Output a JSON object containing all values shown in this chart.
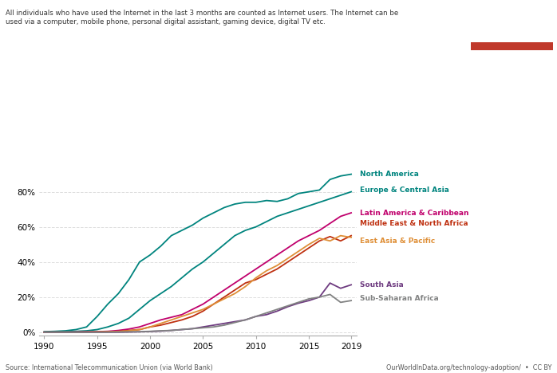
{
  "subtitle": "All individuals who have used the Internet in the last 3 months are counted as Internet users. The Internet can be\nused via a computer, mobile phone, personal digital assistant, gaming device, digital TV etc.",
  "source": "Source: International Telecommunication Union (via World Bank)",
  "owid_url": "OurWorldInData.org/technology-adoption/  •  CC BY",
  "series": {
    "North America": {
      "color": "#00847e",
      "years": [
        1990,
        1991,
        1992,
        1993,
        1994,
        1995,
        1996,
        1997,
        1998,
        1999,
        2000,
        2001,
        2002,
        2003,
        2004,
        2005,
        2006,
        2007,
        2008,
        2009,
        2010,
        2011,
        2012,
        2013,
        2014,
        2015,
        2016,
        2017,
        2018,
        2019
      ],
      "values": [
        0.3,
        0.5,
        0.8,
        1.5,
        3.0,
        9.0,
        16.0,
        22.0,
        30.0,
        40.0,
        44.0,
        49.0,
        55.0,
        58.0,
        61.0,
        65.0,
        68.0,
        71.0,
        73.0,
        74.0,
        74.0,
        75.0,
        74.5,
        76.0,
        79.0,
        80.0,
        81.0,
        87.0,
        89.0,
        90.0
      ]
    },
    "Europe & Central Asia": {
      "color": "#00847e",
      "years": [
        1990,
        1991,
        1992,
        1993,
        1994,
        1995,
        1996,
        1997,
        1998,
        1999,
        2000,
        2001,
        2002,
        2003,
        2004,
        2005,
        2006,
        2007,
        2008,
        2009,
        2010,
        2011,
        2012,
        2013,
        2014,
        2015,
        2016,
        2017,
        2018,
        2019
      ],
      "values": [
        0.1,
        0.2,
        0.3,
        0.5,
        0.8,
        1.5,
        3.0,
        5.0,
        8.0,
        13.0,
        18.0,
        22.0,
        26.0,
        31.0,
        36.0,
        40.0,
        45.0,
        50.0,
        55.0,
        58.0,
        60.0,
        63.0,
        66.0,
        68.0,
        70.0,
        72.0,
        74.0,
        76.0,
        78.0,
        80.0
      ]
    },
    "Latin America & Caribbean": {
      "color": "#c0006c",
      "years": [
        1990,
        1991,
        1992,
        1993,
        1994,
        1995,
        1996,
        1997,
        1998,
        1999,
        2000,
        2001,
        2002,
        2003,
        2004,
        2005,
        2006,
        2007,
        2008,
        2009,
        2010,
        2011,
        2012,
        2013,
        2014,
        2015,
        2016,
        2017,
        2018,
        2019
      ],
      "values": [
        0.0,
        0.0,
        0.0,
        0.1,
        0.2,
        0.3,
        0.5,
        1.0,
        1.8,
        3.0,
        5.0,
        7.0,
        8.5,
        10.0,
        13.0,
        16.0,
        20.0,
        24.0,
        28.0,
        32.0,
        36.0,
        40.0,
        44.0,
        48.0,
        52.0,
        55.0,
        58.0,
        62.0,
        66.0,
        68.0
      ]
    },
    "Middle East & North Africa": {
      "color": "#bf3111",
      "years": [
        1990,
        1991,
        1992,
        1993,
        1994,
        1995,
        1996,
        1997,
        1998,
        1999,
        2000,
        2001,
        2002,
        2003,
        2004,
        2005,
        2006,
        2007,
        2008,
        2009,
        2010,
        2011,
        2012,
        2013,
        2014,
        2015,
        2016,
        2017,
        2018,
        2019
      ],
      "values": [
        0.0,
        0.0,
        0.0,
        0.0,
        0.1,
        0.2,
        0.3,
        0.5,
        1.0,
        1.5,
        3.0,
        4.0,
        5.5,
        7.0,
        9.0,
        12.0,
        16.0,
        20.0,
        24.0,
        28.0,
        30.0,
        33.0,
        36.0,
        40.0,
        44.0,
        48.0,
        52.0,
        54.5,
        52.0,
        55.0
      ]
    },
    "East Asia & Pacific": {
      "color": "#df8f37",
      "years": [
        1990,
        1991,
        1992,
        1993,
        1994,
        1995,
        1996,
        1997,
        1998,
        1999,
        2000,
        2001,
        2002,
        2003,
        2004,
        2005,
        2006,
        2007,
        2008,
        2009,
        2010,
        2011,
        2012,
        2013,
        2014,
        2015,
        2016,
        2017,
        2018,
        2019
      ],
      "values": [
        0.0,
        0.0,
        0.0,
        0.0,
        0.0,
        0.1,
        0.2,
        0.4,
        0.8,
        1.5,
        3.0,
        5.0,
        7.0,
        9.0,
        11.0,
        13.0,
        16.0,
        19.0,
        22.0,
        26.0,
        31.0,
        35.0,
        38.0,
        42.0,
        46.0,
        50.0,
        53.5,
        52.0,
        55.0,
        54.0
      ]
    },
    "South Asia": {
      "color": "#6e3b80",
      "years": [
        1990,
        1991,
        1992,
        1993,
        1994,
        1995,
        1996,
        1997,
        1998,
        1999,
        2000,
        2001,
        2002,
        2003,
        2004,
        2005,
        2006,
        2007,
        2008,
        2009,
        2010,
        2011,
        2012,
        2013,
        2014,
        2015,
        2016,
        2017,
        2018,
        2019
      ],
      "values": [
        0.0,
        0.0,
        0.0,
        0.0,
        0.0,
        0.0,
        0.0,
        0.0,
        0.1,
        0.2,
        0.4,
        0.6,
        1.0,
        1.5,
        2.0,
        3.0,
        4.0,
        5.0,
        6.0,
        7.0,
        9.0,
        10.0,
        12.0,
        14.5,
        16.5,
        18.0,
        20.0,
        28.0,
        25.0,
        27.0
      ]
    },
    "Sub-Saharan Africa": {
      "color": "#818282",
      "years": [
        1990,
        1991,
        1992,
        1993,
        1994,
        1995,
        1996,
        1997,
        1998,
        1999,
        2000,
        2001,
        2002,
        2003,
        2004,
        2005,
        2006,
        2007,
        2008,
        2009,
        2010,
        2011,
        2012,
        2013,
        2014,
        2015,
        2016,
        2017,
        2018,
        2019
      ],
      "values": [
        0.0,
        0.0,
        0.0,
        0.0,
        0.0,
        0.0,
        0.0,
        0.1,
        0.2,
        0.3,
        0.5,
        0.8,
        1.0,
        1.5,
        2.0,
        2.5,
        3.0,
        4.0,
        5.5,
        7.0,
        9.0,
        11.0,
        13.0,
        15.0,
        17.0,
        19.0,
        20.0,
        21.5,
        17.0,
        18.0
      ]
    }
  },
  "label_positions": {
    "North America": {
      "y": 90,
      "va": "center"
    },
    "Europe & Central Asia": {
      "y": 81,
      "va": "center"
    },
    "Latin America & Caribbean": {
      "y": 68,
      "va": "center"
    },
    "Middle East & North Africa": {
      "y": 62,
      "va": "center"
    },
    "East Asia & Pacific": {
      "y": 52,
      "va": "center"
    },
    "South Asia": {
      "y": 27,
      "va": "center"
    },
    "Sub-Saharan Africa": {
      "y": 19,
      "va": "center"
    }
  },
  "xlim": [
    1989.5,
    2019.5
  ],
  "ylim": [
    -2,
    100
  ],
  "xticks": [
    1990,
    1995,
    2000,
    2005,
    2010,
    2015,
    2019
  ],
  "yticks": [
    0,
    20,
    40,
    60,
    80
  ],
  "background_color": "#ffffff",
  "grid_color": "#dddddd",
  "logo_bg": "#1a3a6b",
  "logo_red": "#c0392b"
}
